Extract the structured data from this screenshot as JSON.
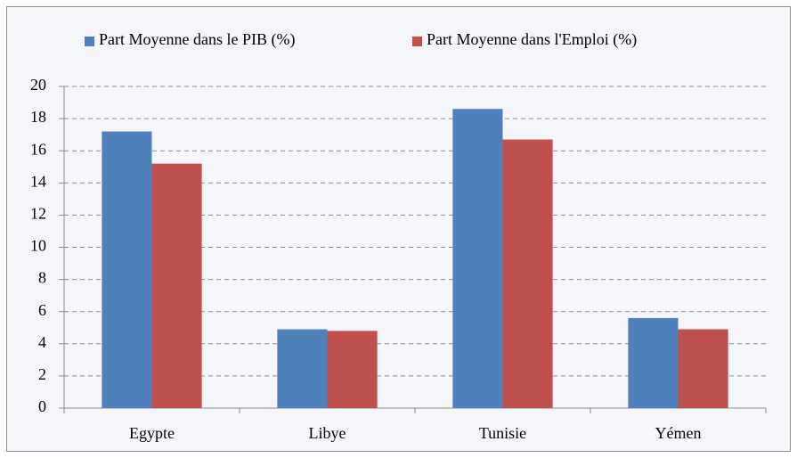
{
  "chart_data": {
    "type": "bar",
    "categories": [
      "Egypte",
      "Libye",
      "Tunisie",
      "Yémen"
    ],
    "series": [
      {
        "name": "Part Moyenne dans le PIB (%)",
        "color": "#4f81bd",
        "values": [
          17.2,
          4.9,
          18.6,
          5.6
        ]
      },
      {
        "name": "Part Moyenne dans l'Emploi (%)",
        "color": "#c0504d",
        "values": [
          15.2,
          4.8,
          16.7,
          4.9
        ]
      }
    ],
    "ylim": [
      0,
      20
    ],
    "yticks": [
      0,
      2,
      4,
      6,
      8,
      10,
      12,
      14,
      16,
      18,
      20
    ],
    "grid": true,
    "legend": "top"
  }
}
